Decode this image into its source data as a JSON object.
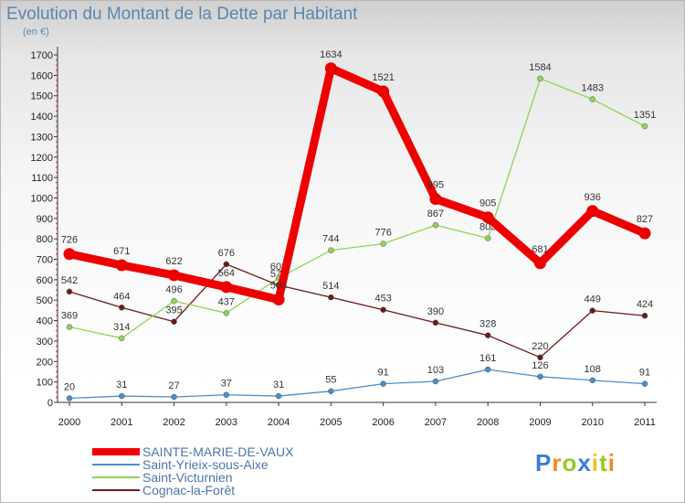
{
  "chart_data": {
    "type": "line",
    "title": "Evolution du Montant de la Dette par Habitant",
    "subtitle": "(en €)",
    "ylim": [
      0,
      1700
    ],
    "yticks": [
      0,
      100,
      200,
      300,
      400,
      500,
      600,
      700,
      800,
      900,
      1000,
      1100,
      1200,
      1300,
      1400,
      1500,
      1600,
      1700
    ],
    "categories": [
      "2000",
      "2001",
      "2002",
      "2003",
      "2004",
      "2005",
      "2006",
      "2007",
      "2008",
      "2009",
      "2010",
      "2011"
    ],
    "grid": false,
    "legend_position": "bottom-left",
    "series": [
      {
        "name": "SAINTE-MARIE-DE-VAUX",
        "color": "#ee0000",
        "values": [
          726,
          671,
          622,
          564,
          503,
          1634,
          1521,
          995,
          905,
          681,
          936,
          827
        ]
      },
      {
        "name": "Saint-Yrieix-sous-Aixe",
        "color": "#4a8fcc",
        "values": [
          20,
          31,
          27,
          37,
          31,
          55,
          91,
          103,
          161,
          126,
          108,
          91
        ]
      },
      {
        "name": "Saint-Victurnien",
        "color": "#8ed456",
        "values": [
          369,
          314,
          496,
          437,
          608,
          744,
          776,
          867,
          803,
          1584,
          1483,
          1351
        ]
      },
      {
        "name": "Cognac-la-Forêt",
        "color": "#6b1a1a",
        "values": [
          542,
          464,
          395,
          676,
          573,
          514,
          453,
          390,
          328,
          220,
          449,
          424
        ]
      }
    ]
  },
  "brand": {
    "letters": [
      {
        "ch": "P",
        "color": "#3a7fd0"
      },
      {
        "ch": "r",
        "color": "#f08a1c"
      },
      {
        "ch": "o",
        "color": "#8fcc2a"
      },
      {
        "ch": "x",
        "color": "#3a7fd0"
      },
      {
        "ch": "i",
        "color": "#f0c21c"
      },
      {
        "ch": "t",
        "color": "#8fcc2a"
      },
      {
        "ch": "i",
        "color": "#f08a1c"
      }
    ]
  }
}
